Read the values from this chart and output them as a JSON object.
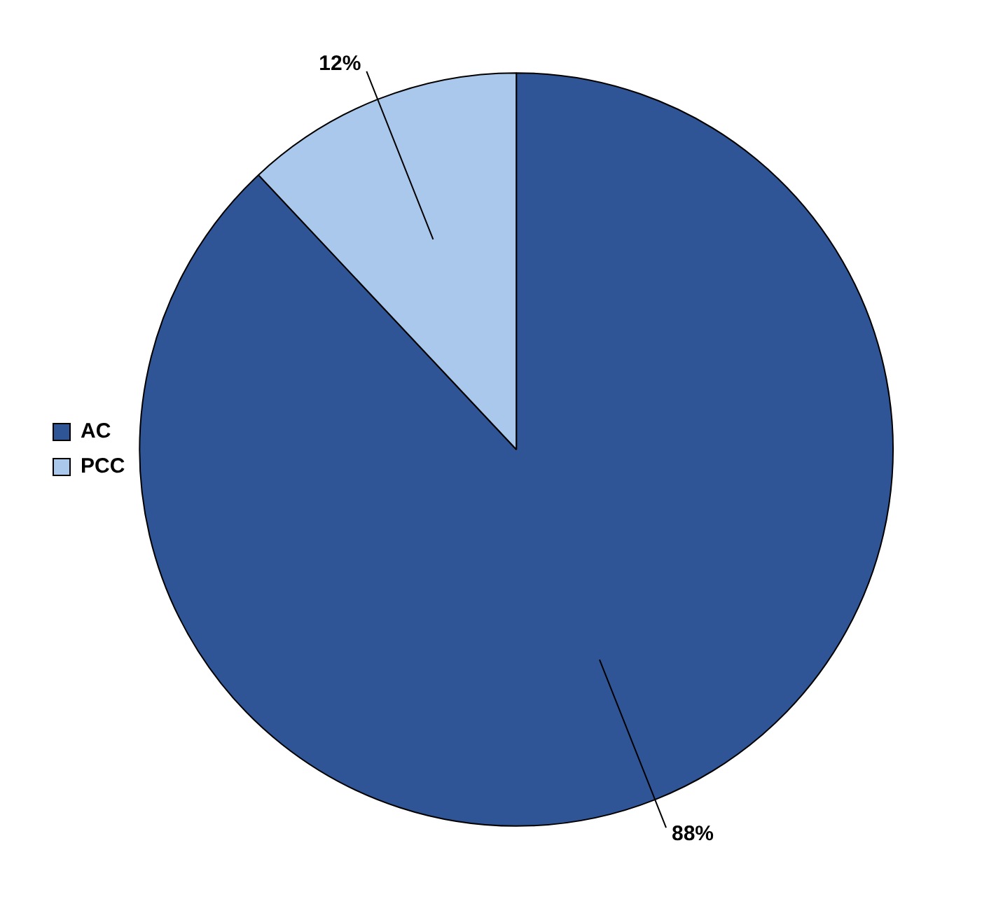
{
  "chart_data": {
    "type": "pie",
    "categories": [
      "AC",
      "PCC"
    ],
    "values": [
      88,
      12
    ],
    "colors": [
      "#2f5597",
      "#a9c8eb"
    ],
    "value_labels": [
      "88%",
      "12%"
    ],
    "legend": "left"
  }
}
